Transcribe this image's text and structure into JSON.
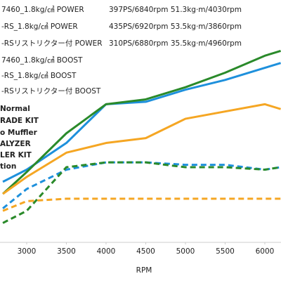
{
  "chart_data": {
    "type": "line",
    "x_label": "RPM",
    "x": [
      2700,
      3000,
      3500,
      4000,
      4500,
      5000,
      5500,
      6000,
      6200
    ],
    "xlim": [
      2664,
      6204
    ],
    "xticks": [
      3000,
      3500,
      4000,
      4500,
      5000,
      5500,
      6000
    ],
    "ylim": [
      0,
      100
    ],
    "series": [
      {
        "name": "7460_1.8kg/㎠ POWER",
        "stats": "397PS/6840rpm 51.3kg·m/4030rpm",
        "color": "#1e90dc",
        "dashed": false,
        "values": [
          25,
          30,
          41,
          57,
          58,
          63,
          67,
          72,
          74
        ]
      },
      {
        "name": "-RS_1.8kg/㎠ POWER",
        "stats": "435PS/6920rpm 53.5kg·m/3860rpm",
        "color": "#2a8a2a",
        "dashed": false,
        "values": [
          20,
          29,
          45,
          57,
          59,
          64,
          70,
          77,
          79
        ]
      },
      {
        "name": "-RSリストリクター付 POWER",
        "stats": "310PS/6880rpm 35.5kg·m/4960rpm",
        "color": "#f5a623",
        "dashed": false,
        "values": [
          20,
          27,
          37,
          41,
          43,
          51,
          54,
          57,
          55
        ]
      },
      {
        "name": "7460_1.8kg/㎠ BOOST",
        "color": "#1e90dc",
        "dashed": true,
        "values": [
          14,
          22,
          30,
          33,
          33,
          32,
          32,
          30,
          31
        ]
      },
      {
        "name": "-RS_1.8kg/㎠ BOOST",
        "color": "#2a8a2a",
        "dashed": true,
        "values": [
          8,
          13,
          31,
          33,
          33,
          31,
          31,
          30,
          31
        ]
      },
      {
        "name": "-RSリストリクター付 BOOST",
        "color": "#f5a623",
        "dashed": true,
        "values": [
          13,
          17,
          18,
          18,
          18,
          18,
          18,
          18,
          18
        ]
      }
    ],
    "side_labels": [
      "Normal",
      "RADE KIT",
      "o Muffler",
      "ALYZER",
      "LER KIT",
      "tion"
    ]
  }
}
